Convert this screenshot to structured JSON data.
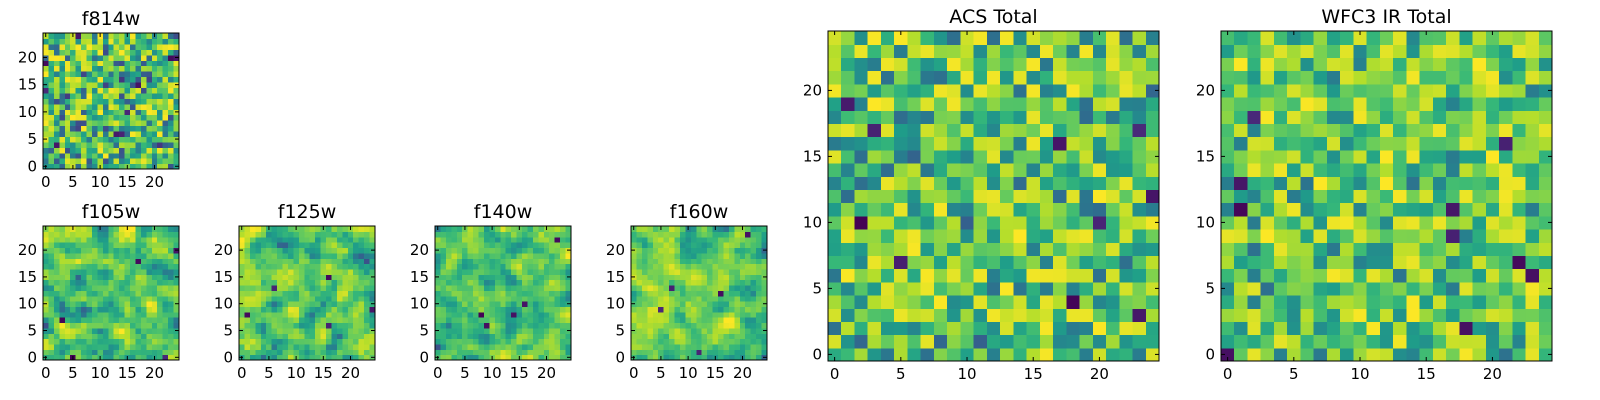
{
  "chart_data": [
    {
      "type": "heatmap",
      "title": "f814w",
      "size": 25,
      "seed": 11,
      "range": [
        0.15,
        1.0
      ],
      "smooth": 0,
      "colormap": "viridis",
      "xticks": [
        0,
        5,
        10,
        15,
        20
      ],
      "yticks": [
        0,
        5,
        10,
        15,
        20
      ],
      "xlim": [
        -0.5,
        24.5
      ],
      "ylim": [
        -0.5,
        24.5
      ]
    },
    {
      "type": "heatmap",
      "title": "f105w",
      "size": 25,
      "seed": 23,
      "range": [
        0.25,
        1.0
      ],
      "smooth": 1,
      "colormap": "viridis",
      "xticks": [
        0,
        5,
        10,
        15,
        20
      ],
      "yticks": [
        0,
        5,
        10,
        15,
        20
      ],
      "xlim": [
        -0.5,
        24.5
      ],
      "ylim": [
        -0.5,
        24.5
      ]
    },
    {
      "type": "heatmap",
      "title": "f125w",
      "size": 25,
      "seed": 37,
      "range": [
        0.25,
        1.0
      ],
      "smooth": 1,
      "colormap": "viridis",
      "xticks": [
        0,
        5,
        10,
        15,
        20
      ],
      "yticks": [
        0,
        5,
        10,
        15,
        20
      ],
      "xlim": [
        -0.5,
        24.5
      ],
      "ylim": [
        -0.5,
        24.5
      ]
    },
    {
      "type": "heatmap",
      "title": "f140w",
      "size": 25,
      "seed": 41,
      "range": [
        0.25,
        1.0
      ],
      "smooth": 1,
      "colormap": "viridis",
      "xticks": [
        0,
        5,
        10,
        15,
        20
      ],
      "yticks": [
        0,
        5,
        10,
        15,
        20
      ],
      "xlim": [
        -0.5,
        24.5
      ],
      "ylim": [
        -0.5,
        24.5
      ]
    },
    {
      "type": "heatmap",
      "title": "f160w",
      "size": 25,
      "seed": 53,
      "range": [
        0.3,
        1.0
      ],
      "smooth": 1,
      "colormap": "viridis",
      "xticks": [
        0,
        5,
        10,
        15,
        20
      ],
      "yticks": [
        0,
        5,
        10,
        15,
        20
      ],
      "xlim": [
        -0.5,
        24.5
      ],
      "ylim": [
        -0.5,
        24.5
      ]
    },
    {
      "type": "heatmap",
      "title": "ACS Total",
      "size": 25,
      "seed": 67,
      "range": [
        0.3,
        1.0
      ],
      "smooth": 0,
      "colormap": "viridis",
      "xticks": [
        0,
        5,
        10,
        15,
        20
      ],
      "yticks": [
        0,
        5,
        10,
        15,
        20
      ],
      "xlim": [
        -0.5,
        24.5
      ],
      "ylim": [
        -0.5,
        24.5
      ]
    },
    {
      "type": "heatmap",
      "title": "WFC3 IR Total",
      "size": 25,
      "seed": 79,
      "range": [
        0.35,
        1.0
      ],
      "smooth": 0,
      "colormap": "viridis",
      "xticks": [
        0,
        5,
        10,
        15,
        20
      ],
      "yticks": [
        0,
        5,
        10,
        15,
        20
      ],
      "xlim": [
        -0.5,
        24.5
      ],
      "ylim": [
        -0.5,
        24.5
      ]
    }
  ]
}
